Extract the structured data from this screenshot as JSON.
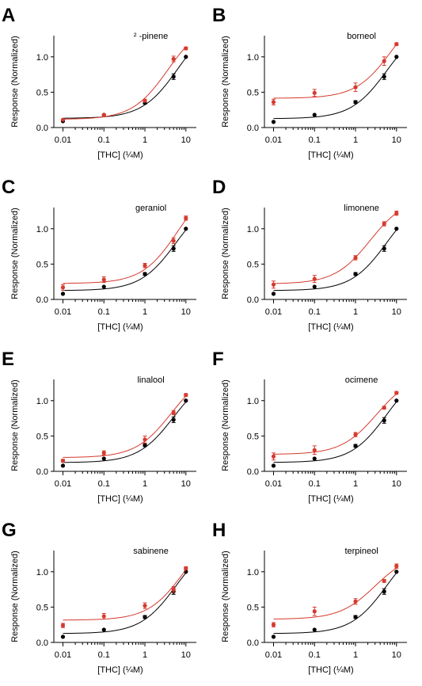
{
  "colors": {
    "thc": "#000000",
    "combo": "#d63a2f",
    "axis": "#000000"
  },
  "shared": {
    "ylabel": "Response (Normalized)",
    "xlabel": "[THC] (¼M)",
    "x_scale": "log",
    "xlim": [
      0.006,
      18
    ],
    "ylim": [
      0,
      1.3
    ],
    "x_ticks": [
      0.01,
      0.1,
      1,
      10
    ],
    "x_tick_labels": [
      "0.01",
      "0.1",
      "1",
      "10"
    ],
    "y_ticks": [
      0,
      0.5,
      1.0
    ],
    "y_tick_labels": [
      "0.0",
      "0.5",
      "1.0"
    ],
    "grid": false,
    "legend": "none"
  },
  "chart_data": [
    {
      "type": "scatter",
      "panel_letter": "A",
      "title": "² -pinene",
      "x": [
        0.01,
        0.1,
        1,
        5,
        10
      ],
      "series": [
        {
          "key": "thc",
          "values": [
            0.09,
            0.18,
            0.35,
            0.72,
            1.0
          ],
          "errors": [
            0.01,
            0.01,
            0.02,
            0.04,
            0.01
          ]
        },
        {
          "key": "combo",
          "values": [
            0.11,
            0.18,
            0.38,
            0.97,
            1.12
          ],
          "errors": [
            0.01,
            0.01,
            0.02,
            0.04,
            0.02
          ]
        }
      ]
    },
    {
      "type": "scatter",
      "panel_letter": "B",
      "title": "borneol",
      "x": [
        0.01,
        0.1,
        1,
        5,
        10
      ],
      "series": [
        {
          "key": "thc",
          "values": [
            0.08,
            0.18,
            0.36,
            0.72,
            1.0
          ],
          "errors": [
            0.01,
            0.01,
            0.02,
            0.04,
            0.01
          ]
        },
        {
          "key": "combo",
          "values": [
            0.36,
            0.49,
            0.57,
            0.94,
            1.18
          ],
          "errors": [
            0.04,
            0.05,
            0.06,
            0.06,
            0.02
          ]
        }
      ]
    },
    {
      "type": "scatter",
      "panel_letter": "C",
      "title": "geraniol",
      "x": [
        0.01,
        0.1,
        1,
        5,
        10
      ],
      "series": [
        {
          "key": "thc",
          "values": [
            0.08,
            0.18,
            0.36,
            0.72,
            1.0
          ],
          "errors": [
            0.01,
            0.01,
            0.02,
            0.04,
            0.01
          ]
        },
        {
          "key": "combo",
          "values": [
            0.17,
            0.28,
            0.48,
            0.83,
            1.15
          ],
          "errors": [
            0.04,
            0.04,
            0.03,
            0.04,
            0.03
          ]
        }
      ]
    },
    {
      "type": "scatter",
      "panel_letter": "D",
      "title": "limonene",
      "x": [
        0.01,
        0.1,
        1,
        5,
        10
      ],
      "series": [
        {
          "key": "thc",
          "values": [
            0.08,
            0.18,
            0.36,
            0.72,
            1.0
          ],
          "errors": [
            0.01,
            0.01,
            0.02,
            0.04,
            0.01
          ]
        },
        {
          "key": "combo",
          "values": [
            0.21,
            0.29,
            0.59,
            1.07,
            1.22
          ],
          "errors": [
            0.05,
            0.05,
            0.03,
            0.03,
            0.03
          ]
        }
      ]
    },
    {
      "type": "scatter",
      "panel_letter": "E",
      "title": "linalool",
      "x": [
        0.01,
        0.1,
        1,
        5,
        10
      ],
      "series": [
        {
          "key": "thc",
          "values": [
            0.08,
            0.18,
            0.37,
            0.73,
            1.0
          ],
          "errors": [
            0.01,
            0.01,
            0.02,
            0.04,
            0.01
          ]
        },
        {
          "key": "combo",
          "values": [
            0.15,
            0.26,
            0.45,
            0.83,
            1.08
          ],
          "errors": [
            0.02,
            0.03,
            0.05,
            0.03,
            0.02
          ]
        }
      ]
    },
    {
      "type": "scatter",
      "panel_letter": "F",
      "title": "ocimene",
      "x": [
        0.01,
        0.1,
        1,
        5,
        10
      ],
      "series": [
        {
          "key": "thc",
          "values": [
            0.08,
            0.18,
            0.36,
            0.72,
            1.0
          ],
          "errors": [
            0.01,
            0.01,
            0.02,
            0.04,
            0.01
          ]
        },
        {
          "key": "combo",
          "values": [
            0.21,
            0.3,
            0.52,
            0.9,
            1.11
          ],
          "errors": [
            0.05,
            0.06,
            0.03,
            0.02,
            0.02
          ]
        }
      ]
    },
    {
      "type": "scatter",
      "panel_letter": "G",
      "title": "sabinene",
      "x": [
        0.01,
        0.1,
        1,
        5,
        10
      ],
      "series": [
        {
          "key": "thc",
          "values": [
            0.08,
            0.18,
            0.36,
            0.72,
            1.0
          ],
          "errors": [
            0.01,
            0.01,
            0.02,
            0.04,
            0.01
          ]
        },
        {
          "key": "combo",
          "values": [
            0.24,
            0.37,
            0.52,
            0.75,
            1.05
          ],
          "errors": [
            0.03,
            0.04,
            0.04,
            0.04,
            0.02
          ]
        }
      ]
    },
    {
      "type": "scatter",
      "panel_letter": "H",
      "title": "terpineol",
      "x": [
        0.01,
        0.1,
        1,
        5,
        10
      ],
      "series": [
        {
          "key": "thc",
          "values": [
            0.08,
            0.18,
            0.36,
            0.72,
            1.0
          ],
          "errors": [
            0.01,
            0.01,
            0.02,
            0.04,
            0.01
          ]
        },
        {
          "key": "combo",
          "values": [
            0.25,
            0.44,
            0.58,
            0.87,
            1.08
          ],
          "errors": [
            0.03,
            0.06,
            0.04,
            0.02,
            0.03
          ]
        }
      ]
    }
  ]
}
